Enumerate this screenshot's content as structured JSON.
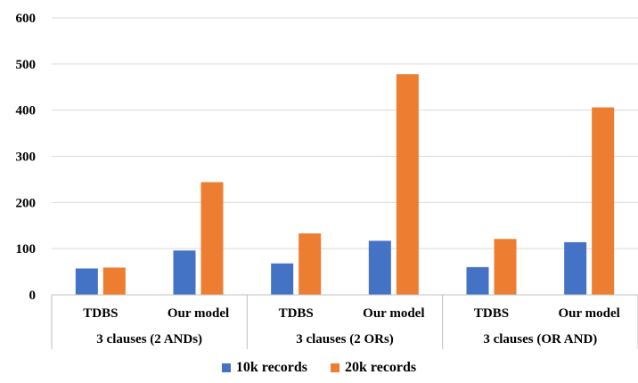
{
  "chart_data": {
    "type": "bar",
    "title": "",
    "xlabel": "",
    "ylabel": "",
    "ylim": [
      0,
      600
    ],
    "yticks": [
      "0",
      "100",
      "200",
      "300",
      "400",
      "500",
      "600"
    ],
    "grid": true,
    "legend_position": "bottom",
    "groups": [
      "3 clauses (2 ANDs)",
      "3 clauses (2 ORs)",
      "3 clauses (OR AND)"
    ],
    "categories": [
      "TDBS",
      "Our model",
      "TDBS",
      "Our model",
      "TDBS",
      "Our model"
    ],
    "series": [
      {
        "name": "10k records",
        "color": "#4472C4",
        "values": [
          57,
          96,
          68,
          117,
          60,
          114
        ]
      },
      {
        "name": "20k records",
        "color": "#ED7D31",
        "values": [
          59,
          244,
          133,
          478,
          121,
          406
        ]
      }
    ]
  }
}
